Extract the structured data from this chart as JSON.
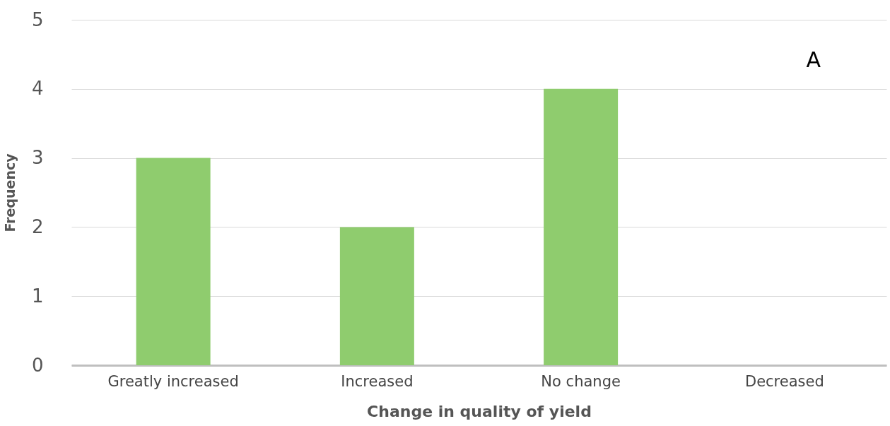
{
  "chart_data": {
    "type": "bar",
    "xlabel": "Change in quality of yield",
    "ylabel": "Frequency",
    "categories": [
      "Greatly increased",
      "Increased",
      "No change",
      "Decreased"
    ],
    "values": [
      3,
      2,
      4,
      0
    ],
    "color": "#8fcc6e",
    "ylim": [
      0,
      5
    ],
    "yticks": [
      0,
      1,
      2,
      3,
      4,
      5
    ],
    "grid": "y",
    "annotations": [
      "A"
    ]
  }
}
